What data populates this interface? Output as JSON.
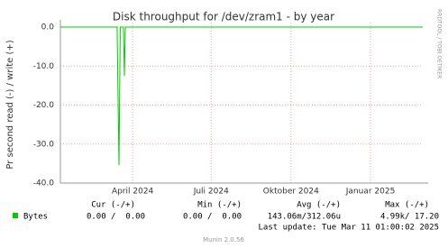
{
  "chart_data": {
    "type": "line",
    "title": "Disk throughput for /dev/zram1 - by year",
    "y_label": "Pr second read (-) / write (+)",
    "side_label": "RRDTOOL / TOBI OETIKER",
    "x": [
      2024.021,
      2024.2,
      2024.206,
      2024.21,
      2024.22,
      2024.223,
      2024.226,
      2025.165
    ],
    "series": [
      {
        "name": "Bytes",
        "color": "#00cc00",
        "values": [
          0,
          0,
          -35.4,
          0,
          0,
          -12.5,
          0,
          0
        ]
      }
    ],
    "xlim": [
      2024.021,
      2025.165
    ],
    "xticks": [
      {
        "value": 2024.249,
        "label": "April 2024"
      },
      {
        "value": 2024.497,
        "label": "Juli 2024"
      },
      {
        "value": 2024.749,
        "label": "Oktober 2024"
      },
      {
        "value": 2025.0,
        "label": "Januar 2025"
      }
    ],
    "ylim": [
      -40,
      0
    ],
    "yticks": [
      {
        "value": 0,
        "label": "0.0"
      },
      {
        "value": -10,
        "label": "-10.0"
      },
      {
        "value": -20,
        "label": "-20.0"
      },
      {
        "value": -30,
        "label": "-30.0"
      },
      {
        "value": -40,
        "label": "-40.0"
      }
    ],
    "grid": true,
    "stats": {
      "headers": [
        "Cur (-/+)",
        "Min (-/+)",
        "Avg (-/+)",
        "Max (-/+)"
      ],
      "values": [
        "0.00 /  0.00",
        "0.00 /  0.00",
        "143.06m/312.06u",
        "4.99k/ 17.20"
      ]
    },
    "last_update": "Last update: Tue Mar 11 01:00:02 2025",
    "footer": "Munin 2.0.56"
  }
}
